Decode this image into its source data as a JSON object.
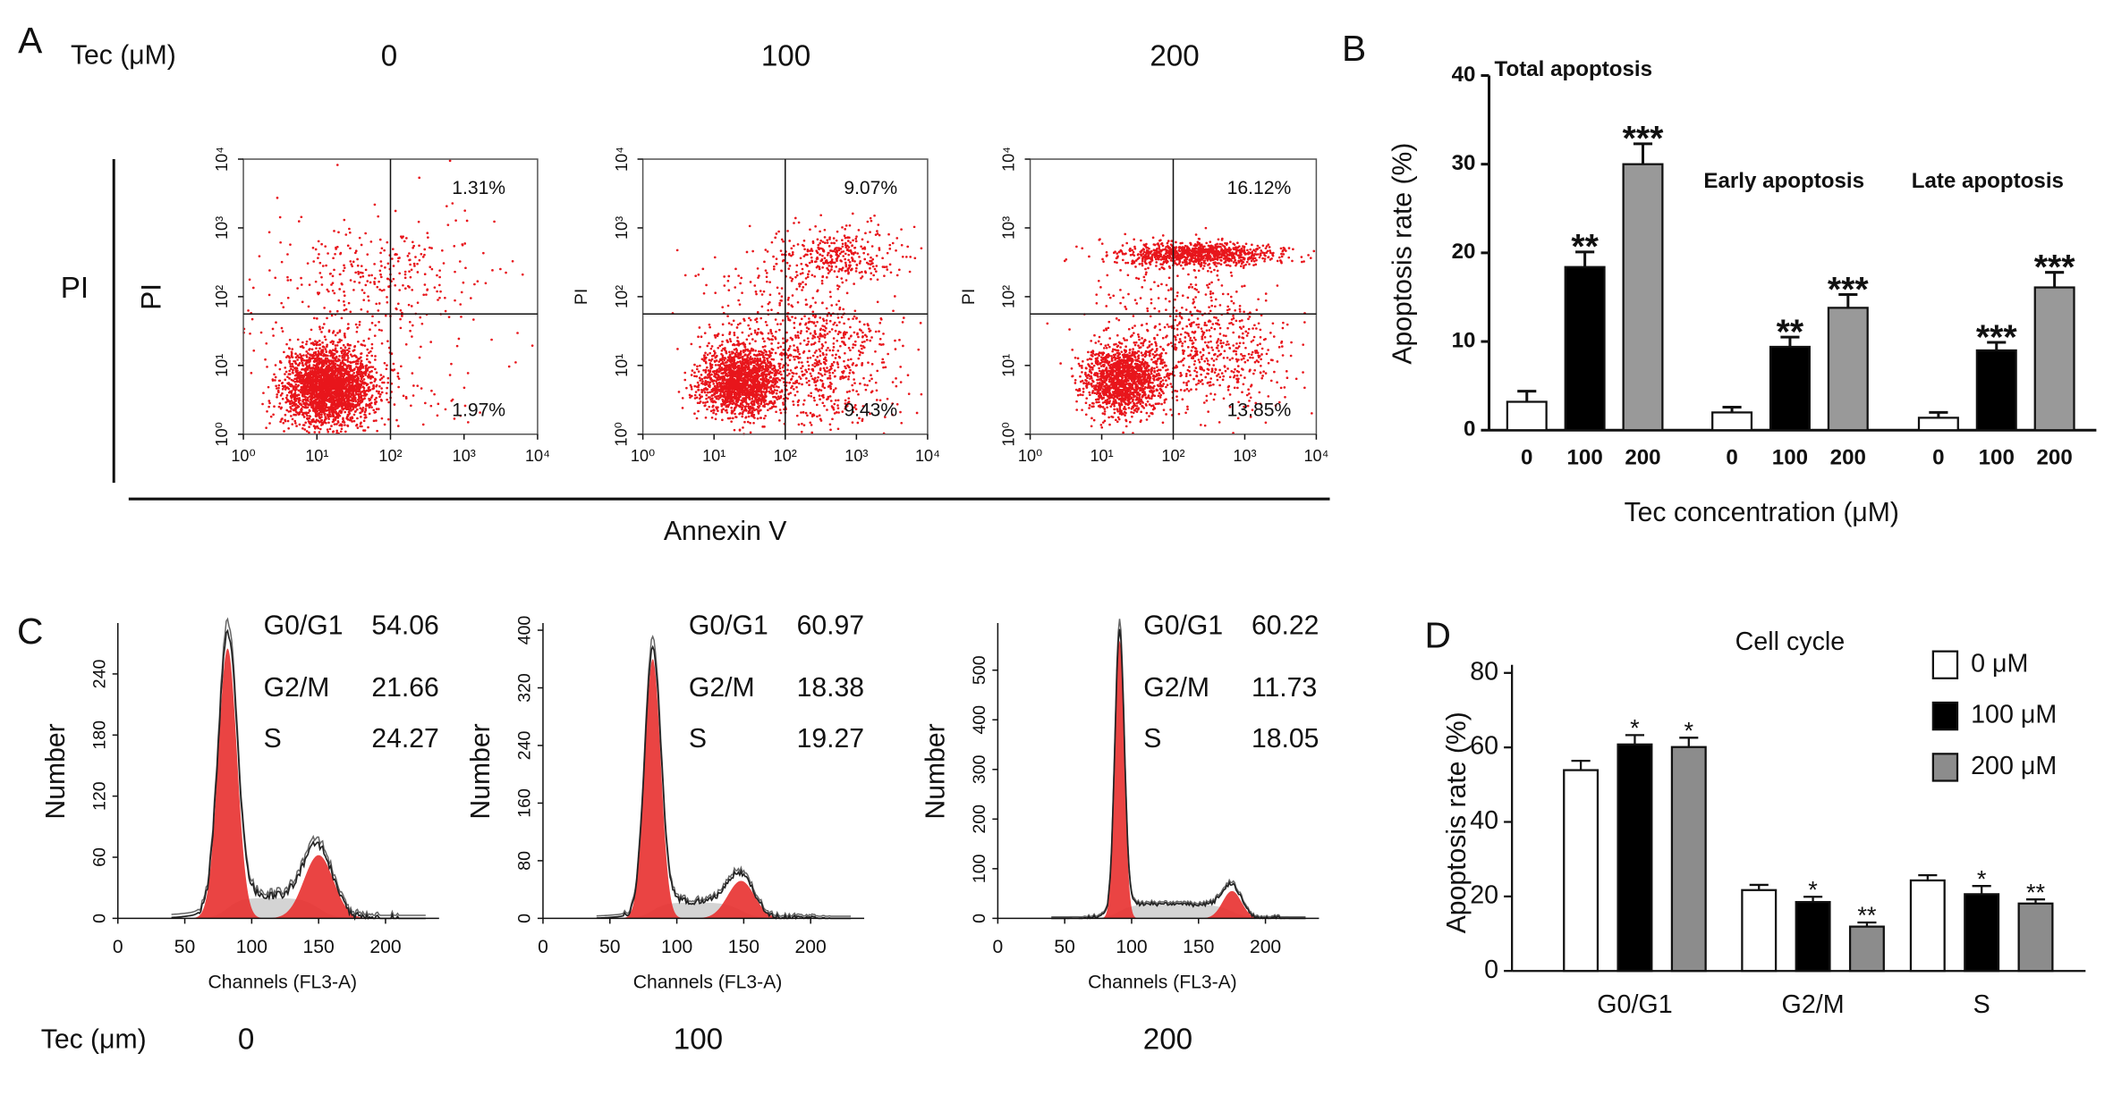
{
  "panel_labels": [
    "A",
    "B",
    "C",
    "D"
  ],
  "panel_a": {
    "dose_label": "Tec (μM)",
    "doses": [
      "0",
      "100",
      "200"
    ],
    "y_title": "PI",
    "x_title": "Annexin V"
  },
  "panel_c": {
    "dose_label": "Tec (μm)",
    "doses": [
      "0",
      "100",
      "200"
    ]
  },
  "chart_data": [
    {
      "type": "scatter",
      "ylabel": "PI",
      "log_x": true,
      "log_y": true,
      "xlim": [
        1,
        10000
      ],
      "ylim": [
        1,
        10000
      ],
      "xticks": [
        {
          "value": 1,
          "label": "10⁰"
        },
        {
          "value": 10,
          "label": "10¹"
        },
        {
          "value": 100,
          "label": "10²"
        },
        {
          "value": 1000,
          "label": "10³"
        },
        {
          "value": 10000,
          "label": "10⁴"
        }
      ],
      "yticks": [
        {
          "value": 1,
          "label": "10⁰"
        },
        {
          "value": 10,
          "label": "10¹"
        },
        {
          "value": 100,
          "label": "10²"
        },
        {
          "value": 1000,
          "label": "10³"
        },
        {
          "value": 10000,
          "label": "10⁴"
        }
      ],
      "gate": [
        100,
        56
      ],
      "quadrant_labels": [
        "1.31%",
        "1.97%"
      ]
    },
    {
      "type": "scatter",
      "ylabel": "PI",
      "log_x": true,
      "log_y": true,
      "xlim": [
        1,
        10000
      ],
      "ylim": [
        1,
        10000
      ],
      "xticks": [
        {
          "value": 1,
          "label": "10⁰"
        },
        {
          "value": 10,
          "label": "10¹"
        },
        {
          "value": 100,
          "label": "10²"
        },
        {
          "value": 1000,
          "label": "10³"
        },
        {
          "value": 10000,
          "label": "10⁴"
        }
      ],
      "yticks": [
        {
          "value": 1,
          "label": "10⁰"
        },
        {
          "value": 10,
          "label": "10¹"
        },
        {
          "value": 100,
          "label": "10²"
        },
        {
          "value": 1000,
          "label": "10³"
        },
        {
          "value": 10000,
          "label": "10⁴"
        }
      ],
      "gate": [
        100,
        56
      ],
      "quadrant_labels": [
        "9.07%",
        "9.43%"
      ]
    },
    {
      "type": "scatter",
      "ylabel": "PI",
      "log_x": true,
      "log_y": true,
      "xlim": [
        1,
        10000
      ],
      "ylim": [
        1,
        10000
      ],
      "xticks": [
        {
          "value": 1,
          "label": "10⁰"
        },
        {
          "value": 10,
          "label": "10¹"
        },
        {
          "value": 100,
          "label": "10²"
        },
        {
          "value": 1000,
          "label": "10³"
        },
        {
          "value": 10000,
          "label": "10⁴"
        }
      ],
      "yticks": [
        {
          "value": 1,
          "label": "10⁰"
        },
        {
          "value": 10,
          "label": "10¹"
        },
        {
          "value": 100,
          "label": "10²"
        },
        {
          "value": 1000,
          "label": "10³"
        },
        {
          "value": 10000,
          "label": "10⁴"
        }
      ],
      "gate": [
        100,
        56
      ],
      "quadrant_labels": [
        "16.12%",
        "13.85%"
      ]
    },
    {
      "type": "bar",
      "ylabel": "Apoptosis rate (%)",
      "xlabel": "Tec concentration (μM)",
      "ylim": [
        0,
        40
      ],
      "yticks": [
        0,
        10,
        20,
        30,
        40
      ],
      "colors": [
        "#ffffff",
        "#000000",
        "#999999"
      ],
      "groups": [
        {
          "name": "Total apoptosis",
          "categories": [
            "0",
            "100",
            "200"
          ],
          "values": [
            3.2,
            18.4,
            30.0
          ],
          "errors": [
            1.2,
            1.7,
            2.3
          ],
          "significance": [
            null,
            "**",
            "***"
          ]
        },
        {
          "name": "Early apoptosis",
          "categories": [
            "0",
            "100",
            "200"
          ],
          "values": [
            2.0,
            9.4,
            13.8
          ],
          "errors": [
            0.6,
            1.1,
            1.5
          ],
          "significance": [
            null,
            "**",
            "***"
          ]
        },
        {
          "name": "Late apoptosis",
          "categories": [
            "0",
            "100",
            "200"
          ],
          "values": [
            1.4,
            9.0,
            16.1
          ],
          "errors": [
            0.6,
            0.9,
            1.7
          ],
          "significance": [
            null,
            "***",
            "***"
          ]
        }
      ]
    },
    {
      "type": "histogram",
      "ylabel": "Number",
      "xlabel": "Channels (FL3-A)",
      "xlim": [
        0,
        240
      ],
      "ylim": [
        0,
        290
      ],
      "xticks": [
        0,
        50,
        100,
        150,
        200
      ],
      "yticks": [
        0,
        60,
        120,
        180,
        240
      ],
      "stats": [
        {
          "label": "G0/G1",
          "value": 54.06
        },
        {
          "label": "G2/M",
          "value": 21.66
        },
        {
          "label": "S",
          "value": 24.27
        }
      ]
    },
    {
      "type": "histogram",
      "ylabel": "Number",
      "xlabel": "Channels (FL3-A)",
      "xlim": [
        0,
        240
      ],
      "ylim": [
        0,
        410
      ],
      "xticks": [
        0,
        50,
        100,
        150,
        200
      ],
      "yticks": [
        0,
        80,
        160,
        240,
        320,
        400
      ],
      "stats": [
        {
          "label": "G0/G1",
          "value": 60.97
        },
        {
          "label": "G2/M",
          "value": 18.38
        },
        {
          "label": "S",
          "value": 19.27
        }
      ]
    },
    {
      "type": "histogram",
      "ylabel": "Number",
      "xlabel": "Channels (FL3-A)",
      "xlim": [
        0,
        240
      ],
      "ylim": [
        0,
        595
      ],
      "xticks": [
        0,
        50,
        100,
        150,
        200
      ],
      "yticks": [
        0,
        100,
        200,
        300,
        400,
        500
      ],
      "stats": [
        {
          "label": "G0/G1",
          "value": 60.22
        },
        {
          "label": "G2/M",
          "value": 11.73
        },
        {
          "label": "S",
          "value": 18.05
        }
      ]
    },
    {
      "type": "grouped_bar",
      "title": "Cell cycle",
      "ylabel": "Apoptosis rate (%)",
      "categories": [
        "G0/G1",
        "G2/M",
        "S"
      ],
      "ylim": [
        0,
        80
      ],
      "yticks": [
        0,
        20,
        40,
        60,
        80
      ],
      "series": [
        {
          "name": "0 μM",
          "color": "#ffffff",
          "values": [
            53.9,
            21.7,
            24.3
          ],
          "errors": [
            2.5,
            1.4,
            1.4
          ]
        },
        {
          "name": "100 μM",
          "color": "#000000",
          "values": [
            60.8,
            18.5,
            20.6
          ],
          "errors": [
            2.5,
            1.4,
            2.2
          ],
          "significance": [
            "*",
            "*",
            "*"
          ]
        },
        {
          "name": "200 μM",
          "color": "#8c8c8c",
          "values": [
            60.1,
            11.9,
            18.1
          ],
          "errors": [
            2.5,
            1.1,
            1.1
          ],
          "significance": [
            "*",
            "**",
            "**"
          ]
        }
      ]
    }
  ]
}
